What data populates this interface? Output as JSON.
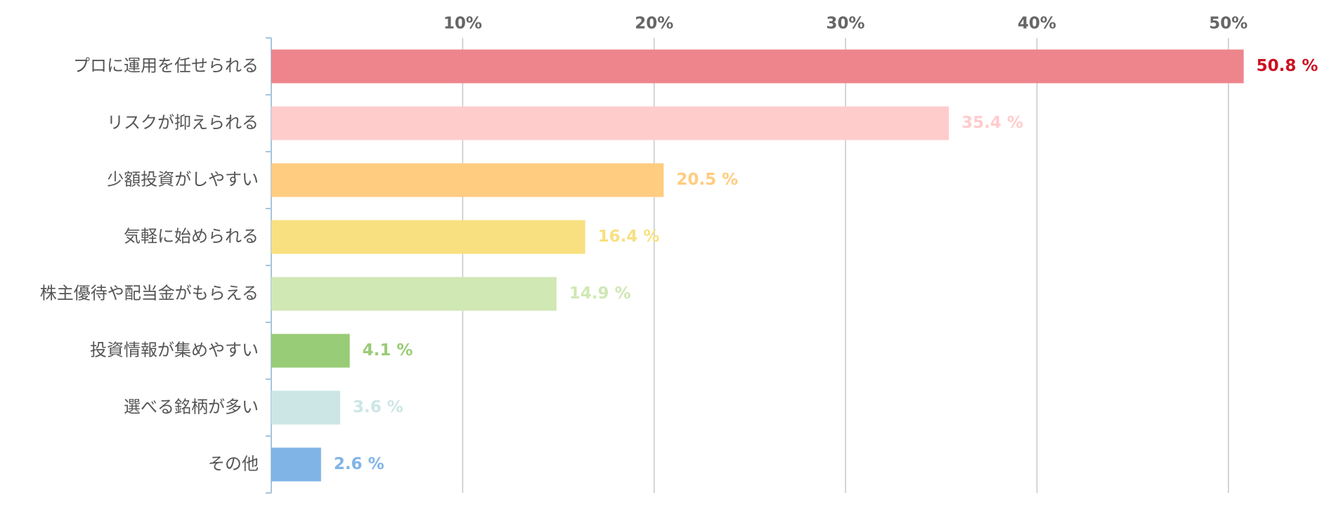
{
  "chart_data": {
    "type": "bar",
    "orientation": "horizontal",
    "categories": [
      "プロに運用を任せられる",
      "リスクが抑えられる",
      "少額投資がしやすい",
      "気軽に始められる",
      "株主優待や配当金がもらえる",
      "投資情報が集めやすい",
      "選べる銘柄が多い",
      "その他"
    ],
    "values": [
      50.8,
      35.4,
      20.5,
      16.4,
      14.9,
      4.1,
      3.6,
      2.6
    ],
    "value_labels": [
      "50.8 %",
      "35.4 %",
      "20.5 %",
      "16.4 %",
      "14.9 %",
      "4.1 %",
      "3.6 %",
      "2.6 %"
    ],
    "colors": [
      "#ee858c",
      "#ffcccc",
      "#ffcc80",
      "#f8e080",
      "#d0e8b4",
      "#99cc77",
      "#cce6e6",
      "#80b4e6"
    ],
    "value_label_colors": [
      "#cc1122",
      "#ffcccc",
      "#ffcc80",
      "#f8e080",
      "#d0e8b4",
      "#99cc77",
      "#cce6e6",
      "#80b4e6"
    ],
    "xlim": [
      0,
      55
    ],
    "xticks": [
      {
        "value": 10,
        "label": "10%"
      },
      {
        "value": 20,
        "label": "20%"
      },
      {
        "value": 30,
        "label": "30%"
      },
      {
        "value": 40,
        "label": "40%"
      },
      {
        "value": 50,
        "label": "50%"
      }
    ],
    "grid": true
  }
}
